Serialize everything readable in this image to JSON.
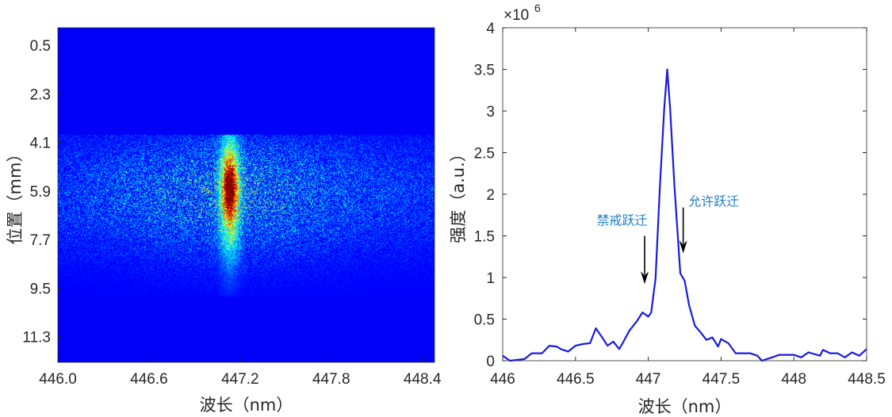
{
  "chart_data": [
    {
      "type": "heatmap",
      "colormap": "jet",
      "xlabel": "波长（nm）",
      "ylabel": "位置（mm）",
      "xlim": [
        446.0,
        448.48
      ],
      "ylim": [
        -0.15,
        12.25
      ],
      "y_reversed": true,
      "xticks": [
        446.0,
        446.6,
        447.2,
        447.8,
        448.4
      ],
      "xtick_labels": [
        "446.0",
        "446.6",
        "447.2",
        "447.8",
        "448.4"
      ],
      "yticks": [
        0.5,
        2.3,
        4.1,
        5.9,
        7.7,
        9.5,
        11.3
      ],
      "ytick_labels": [
        "0.5",
        "2.3",
        "4.1",
        "5.9",
        "7.7",
        "9.5",
        "11.3"
      ],
      "peak_wavelength": 447.13,
      "peak_position_range": [
        5.0,
        6.6
      ],
      "emission_position_range": [
        3.8,
        9.8
      ]
    },
    {
      "type": "line",
      "xlabel": "波长（nm）",
      "ylabel": "强度（a.u.）",
      "y_exponent_label": "×10",
      "y_exponent": "6",
      "xlim": [
        446,
        448.5
      ],
      "ylim": [
        0,
        4000000
      ],
      "xticks": [
        446,
        446.5,
        447,
        447.5,
        448,
        448.5
      ],
      "xtick_labels": [
        "446",
        "446.5",
        "447",
        "447.5",
        "448",
        "448.5"
      ],
      "yticks": [
        0,
        0.5,
        1,
        1.5,
        2,
        2.5,
        3,
        3.5,
        4
      ],
      "ytick_labels": [
        "0",
        "0.5",
        "1",
        "1.5",
        "2",
        "2.5",
        "3",
        "3.5",
        "4"
      ],
      "line_color": "#1a1adf",
      "x": [
        446.0,
        446.05,
        446.15,
        446.2,
        446.27,
        446.32,
        446.37,
        446.4,
        446.45,
        446.5,
        446.55,
        446.6,
        446.64,
        446.68,
        446.72,
        446.76,
        446.8,
        446.83,
        446.87,
        446.92,
        446.96,
        447.0,
        447.02,
        447.05,
        447.08,
        447.11,
        447.13,
        447.15,
        447.18,
        447.22,
        447.25,
        447.28,
        447.32,
        447.36,
        447.4,
        447.44,
        447.48,
        447.5,
        447.55,
        447.6,
        447.65,
        447.7,
        447.75,
        447.78,
        447.85,
        447.9,
        448.0,
        448.05,
        448.1,
        448.18,
        448.2,
        448.25,
        448.3,
        448.35,
        448.4,
        448.45,
        448.5
      ],
      "y_millions": [
        0.06,
        0.0,
        0.02,
        0.09,
        0.09,
        0.18,
        0.17,
        0.14,
        0.11,
        0.18,
        0.2,
        0.21,
        0.39,
        0.29,
        0.18,
        0.23,
        0.14,
        0.23,
        0.36,
        0.47,
        0.58,
        0.53,
        0.58,
        0.99,
        2.1,
        3.04,
        3.5,
        3.04,
        2.1,
        1.05,
        0.96,
        0.67,
        0.42,
        0.34,
        0.25,
        0.28,
        0.17,
        0.26,
        0.21,
        0.09,
        0.09,
        0.09,
        0.06,
        0.0,
        0.04,
        0.07,
        0.07,
        0.04,
        0.1,
        0.06,
        0.13,
        0.09,
        0.09,
        0.04,
        0.1,
        0.06,
        0.14
      ],
      "annotations": [
        {
          "text": "禁戒跃迁",
          "text_at": [
            446.82,
            1.69
          ],
          "arrow_from": [
            446.975,
            1.5
          ],
          "arrow_to": [
            446.975,
            0.92
          ],
          "color": "#1f7fc4"
        },
        {
          "text": "允许跃迁",
          "text_at": [
            447.45,
            1.92
          ],
          "arrow_from": [
            447.24,
            1.84
          ],
          "arrow_to": [
            447.24,
            1.29
          ],
          "color": "#1f7fc4"
        }
      ]
    }
  ]
}
